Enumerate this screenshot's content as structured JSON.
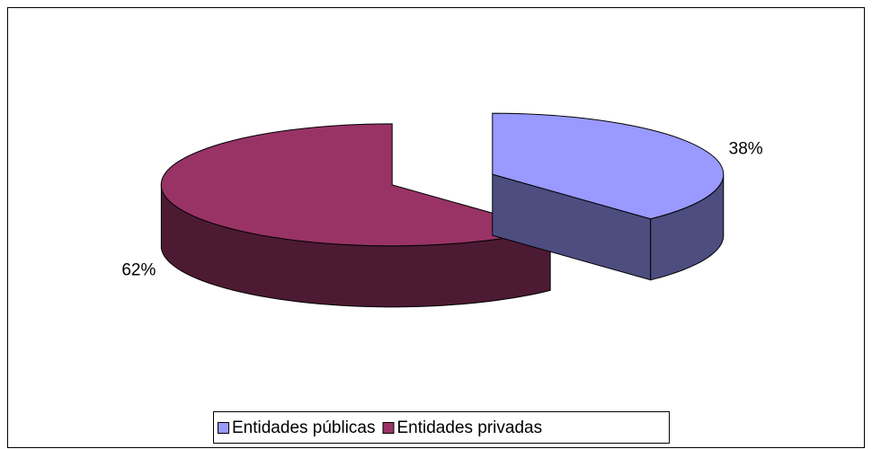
{
  "chart_data": {
    "type": "pie3d",
    "categories": [
      "Entidades públicas",
      "Entidades privadas"
    ],
    "values": [
      38,
      62
    ],
    "value_labels": [
      "38%",
      "62%"
    ],
    "colors": [
      "#9999ff",
      "#993366"
    ],
    "legend": "bottom"
  }
}
